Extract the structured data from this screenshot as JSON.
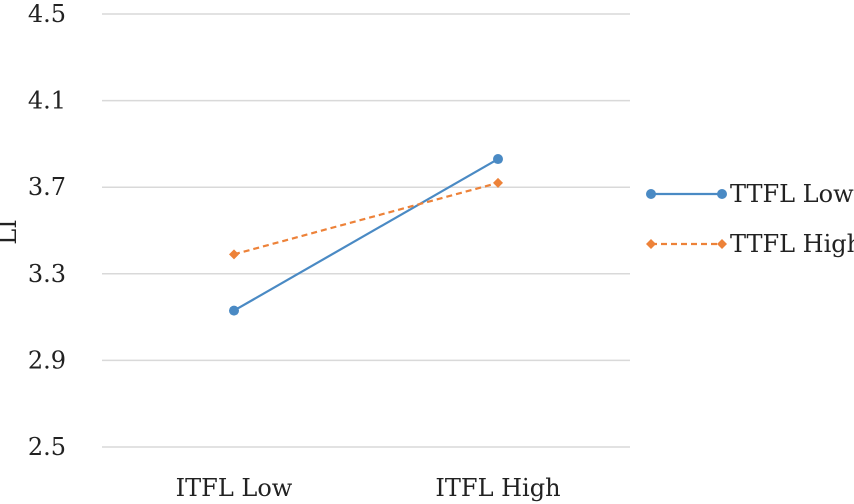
{
  "chart_data": {
    "type": "line",
    "title": "",
    "xlabel": "",
    "ylabel": "LI",
    "categories": [
      "ITFL Low",
      "ITFL High"
    ],
    "ylim": [
      2.5,
      4.5
    ],
    "yticks": [
      "2.5",
      "2.9",
      "3.3",
      "3.7",
      "4.1",
      "4.5"
    ],
    "grid": "horizontal",
    "legend_position": "right",
    "series": [
      {
        "name": "TTFL Low",
        "values": [
          3.13,
          3.83
        ],
        "color": "#4a8ac4",
        "style": "solid",
        "marker": "circle"
      },
      {
        "name": "TTFL High",
        "values": [
          3.39,
          3.72
        ],
        "color": "#ed8239",
        "style": "dashed",
        "marker": "diamond"
      }
    ]
  }
}
